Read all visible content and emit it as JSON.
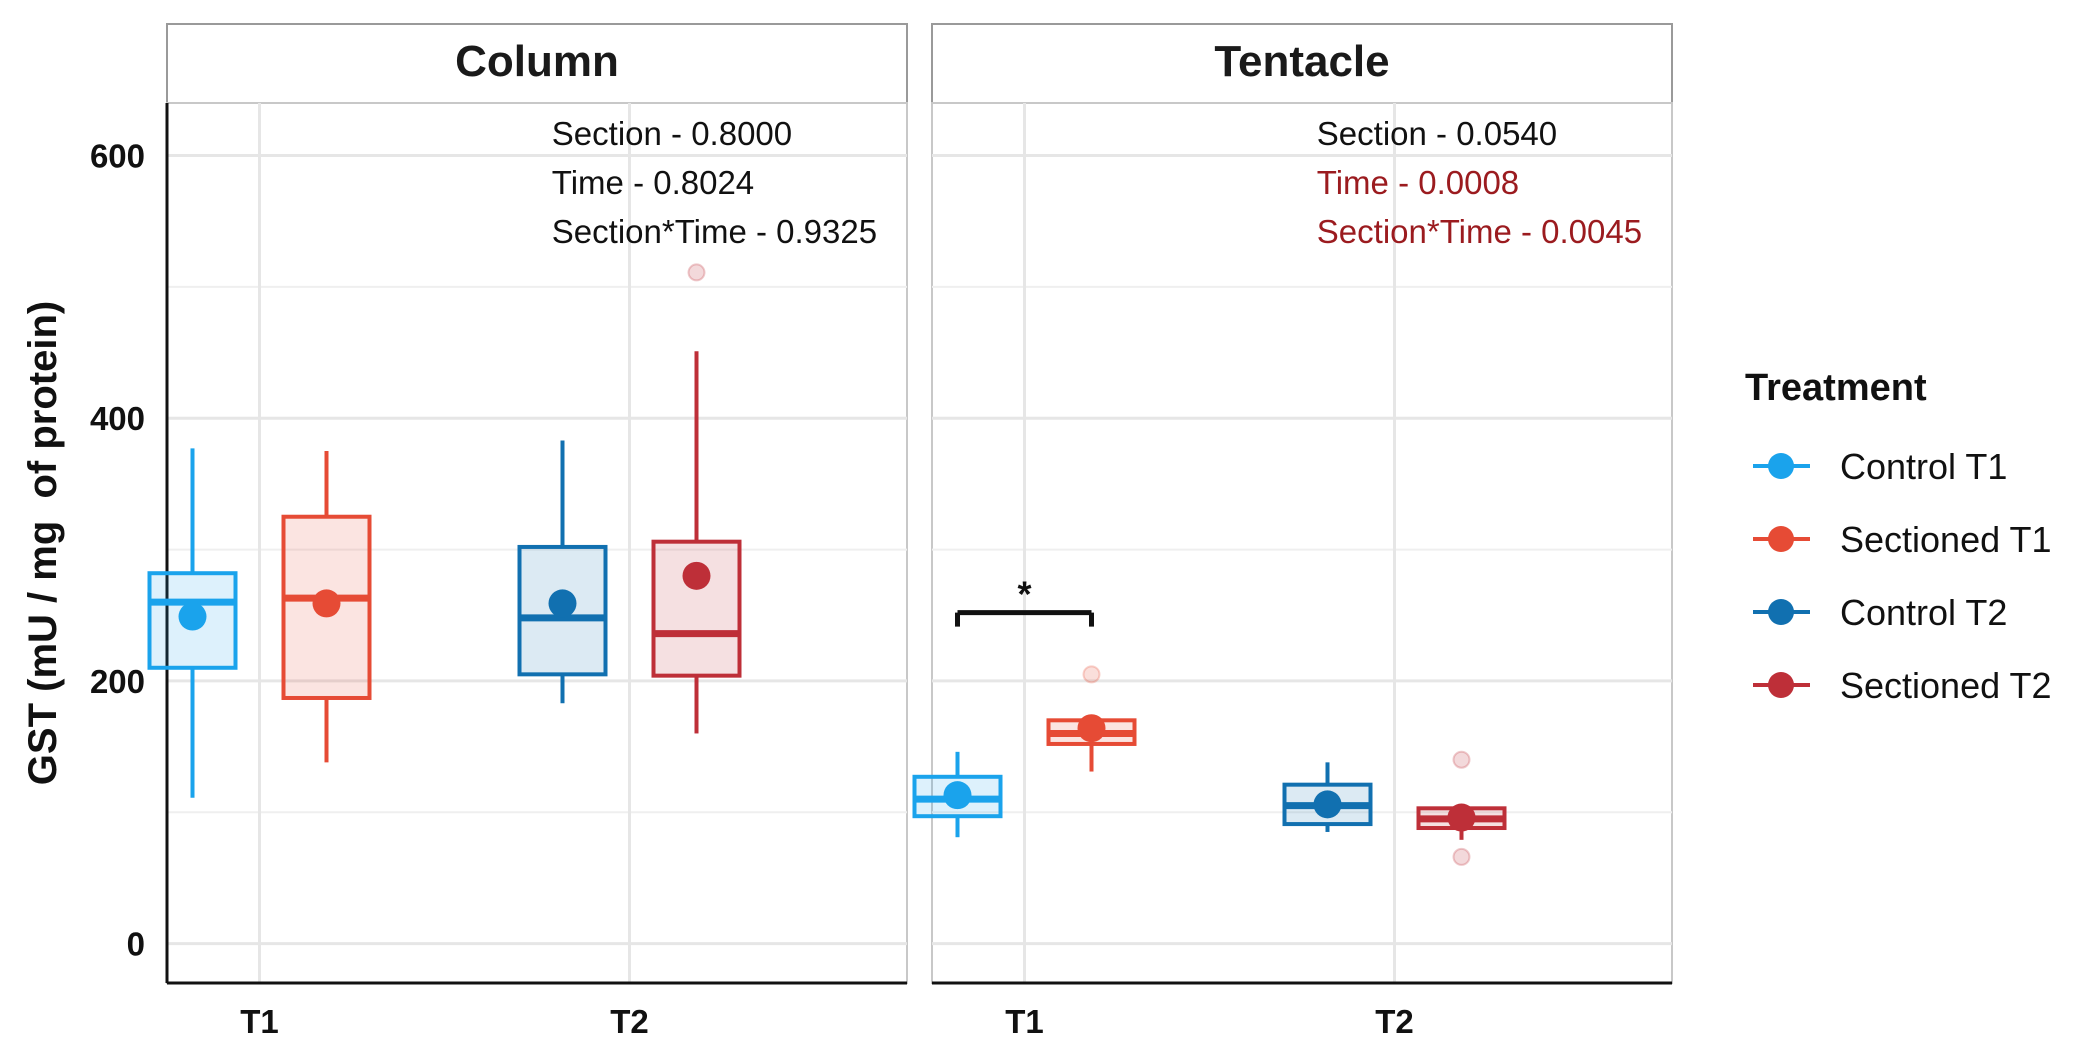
{
  "chart_data": {
    "type": "boxplot",
    "ylabel": "GST (mU / mg  of protein)",
    "ylim": [
      -30,
      640
    ],
    "yticks": [
      0,
      200,
      400,
      600
    ],
    "grid": true,
    "x_categories": [
      "T1",
      "T2"
    ],
    "legend": {
      "title": "Treatment",
      "placement": "right",
      "entries": [
        {
          "label": "Control T1",
          "color": "#1AA3EC"
        },
        {
          "label": "Sectioned T1",
          "color": "#E64B35"
        },
        {
          "label": "Control T2",
          "color": "#1170B0"
        },
        {
          "label": "Sectioned T2",
          "color": "#BE2F38"
        }
      ]
    },
    "panels": [
      {
        "title": "Column",
        "stats": [
          {
            "text": "Section - 0.8000",
            "significant": false
          },
          {
            "text": "Time - 0.8024",
            "significant": false
          },
          {
            "text": "Section*Time - 0.9325",
            "significant": false
          }
        ],
        "groups": [
          {
            "treatment": "Control T1",
            "x": "T1",
            "min": 111,
            "q1": 210,
            "median": 260,
            "q3": 282,
            "max": 377,
            "mean": 249,
            "outliers": []
          },
          {
            "treatment": "Sectioned T1",
            "x": "T1",
            "min": 138,
            "q1": 187,
            "median": 263,
            "q3": 325,
            "max": 375,
            "mean": 259,
            "outliers": []
          },
          {
            "treatment": "Control T2",
            "x": "T2",
            "min": 183,
            "q1": 205,
            "median": 248,
            "q3": 302,
            "max": 383,
            "mean": 259,
            "outliers": []
          },
          {
            "treatment": "Sectioned T2",
            "x": "T2",
            "min": 160,
            "q1": 204,
            "median": 236,
            "q3": 306,
            "max": 451,
            "mean": 280,
            "outliers": [
              511
            ]
          }
        ],
        "annotations": []
      },
      {
        "title": "Tentacle",
        "stats": [
          {
            "text": "Section - 0.0540",
            "significant": false
          },
          {
            "text": "Time - 0.0008",
            "significant": true
          },
          {
            "text": "Section*Time - 0.0045",
            "significant": true
          }
        ],
        "groups": [
          {
            "treatment": "Control T1",
            "x": "T1",
            "min": 81,
            "q1": 97,
            "median": 110,
            "q3": 127,
            "max": 146,
            "mean": 113,
            "outliers": []
          },
          {
            "treatment": "Sectioned T1",
            "x": "T1",
            "min": 131,
            "q1": 152,
            "median": 160,
            "q3": 170,
            "max": 170,
            "mean": 164,
            "outliers": [
              205
            ]
          },
          {
            "treatment": "Control T2",
            "x": "T2",
            "min": 85,
            "q1": 91,
            "median": 105,
            "q3": 121,
            "max": 138,
            "mean": 106,
            "outliers": []
          },
          {
            "treatment": "Sectioned T2",
            "x": "T2",
            "min": 79,
            "q1": 88,
            "median": 95,
            "q3": 103,
            "max": 103,
            "mean": 96,
            "outliers": [
              140,
              66
            ]
          }
        ],
        "annotations": [
          {
            "type": "significance-bracket",
            "label": "*",
            "from": "Control T1",
            "to": "Sectioned T1",
            "y": 252
          }
        ]
      }
    ]
  }
}
